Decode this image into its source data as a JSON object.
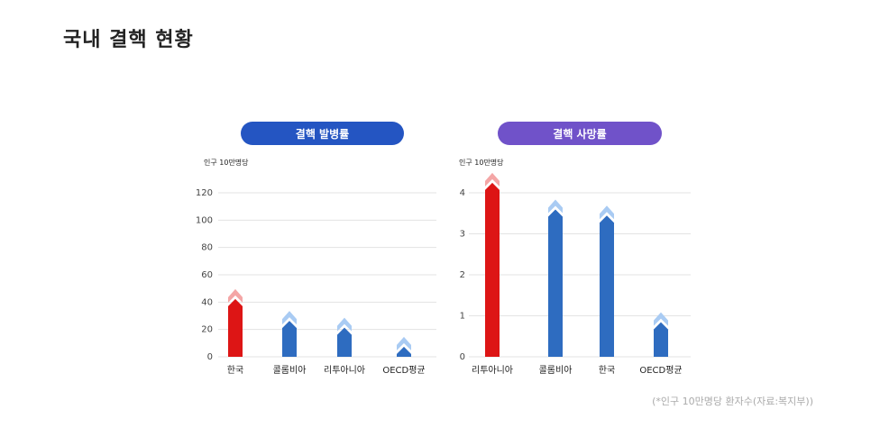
{
  "page": {
    "title": "국내 결핵 현황"
  },
  "colors": {
    "korea_bar": "#dd1515",
    "korea_cap": "#f4a6a6",
    "other_bar": "#2e6cc0",
    "other_cap": "#a9cbf3",
    "grid": "#e3e3e3",
    "left_pill": "#2455c2",
    "right_pill": "#7052c9"
  },
  "chart_data": [
    {
      "type": "bar",
      "title": "결핵 발병률",
      "ylabel": "인구 10만명당",
      "categories": [
        "한국",
        "콜롬비아",
        "리투아니아",
        "OECD평균"
      ],
      "values": [
        41,
        25,
        20,
        6
      ],
      "highlight": "한국",
      "ylim": [
        0,
        120
      ],
      "yticks": [
        "0",
        "20",
        "40",
        "60",
        "80",
        "100",
        "120"
      ],
      "grid": true
    },
    {
      "type": "bar",
      "title": "결핵 사망률",
      "ylabel": "인구 10만명당",
      "categories": [
        "리투아니아",
        "콜롬비아",
        "한국",
        "OECD평균"
      ],
      "values": [
        4.2,
        3.55,
        3.4,
        0.8
      ],
      "highlight": "리투아니아",
      "ylim": [
        0,
        4
      ],
      "yticks": [
        "0",
        "1",
        "2",
        "3",
        "4"
      ],
      "grid": true
    }
  ],
  "footnote": "(*인구 10만명당 환자수(자료:복지부))"
}
